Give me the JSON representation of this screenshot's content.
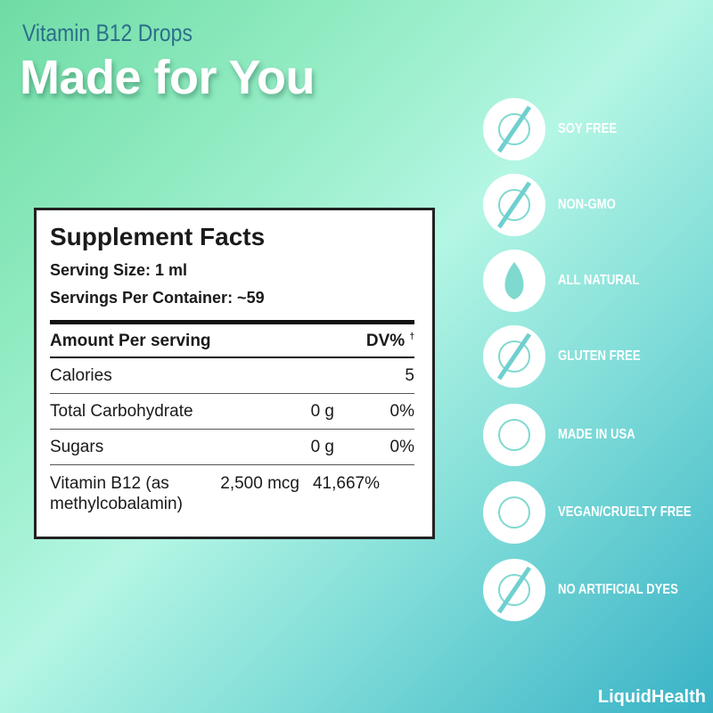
{
  "header": {
    "subtitle": "Vitamin B12 Drops",
    "title": "Made for You"
  },
  "facts": {
    "title": "Supplement Facts",
    "serving_size": "Serving Size: 1 ml",
    "servings_per_container": "Servings Per Container: ~59",
    "col_amount": "Amount Per serving",
    "col_dv": "DV%",
    "dv_mark": "†",
    "rows": [
      {
        "name": "Calories",
        "amount": "",
        "dv": "5"
      },
      {
        "name": "Total Carbohydrate",
        "amount": "0 g",
        "dv": "0%"
      },
      {
        "name": "Sugars",
        "amount": "0 g",
        "dv": "0%"
      },
      {
        "name": "Vitamin B12 (as methylcobalamin)",
        "amount": "2,500 mcg",
        "dv": "41,667%"
      }
    ]
  },
  "badges": [
    {
      "label": "SOY FREE",
      "icon": "soy-free-icon"
    },
    {
      "label": "NON-GMO",
      "icon": "non-gmo-icon"
    },
    {
      "label": "ALL NATURAL",
      "icon": "leaf-icon"
    },
    {
      "label": "GLUTEN FREE",
      "icon": "gluten-free-icon"
    },
    {
      "label": "MADE IN USA",
      "icon": "usa-map-icon"
    },
    {
      "label": "VEGAN/CRUELTY FREE",
      "icon": "bunny-icon"
    },
    {
      "label": "NO ARTIFICIAL DYES",
      "icon": "no-dye-drop-icon"
    }
  ],
  "brand": {
    "logo_text": "LiquidHealth"
  },
  "colors": {
    "subtitle": "#2c6f8a",
    "icon_fill": "#ffffff",
    "bg_start": "#6fdca4",
    "bg_end": "#38b2c6"
  }
}
